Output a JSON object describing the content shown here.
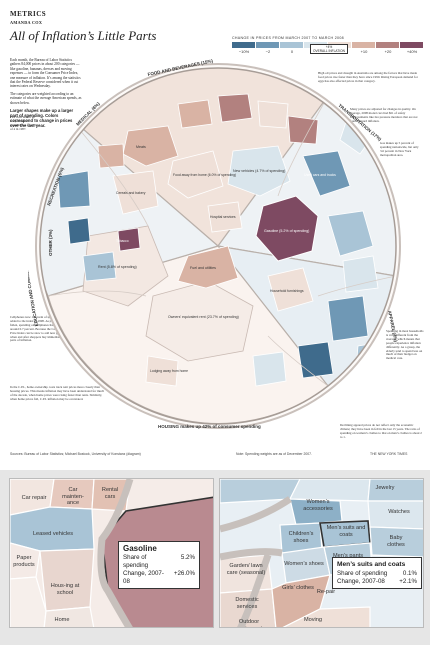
{
  "header": {
    "kicker": "METRICS",
    "byline": "AMANDA COX",
    "title": "All of Inflation’s Little Parts"
  },
  "intro": {
    "p1": "Each month, the Bureau of Labor Statistics gathers 84,000 prices in about 200 categories — like gasoline, bananas, dresses and moving expenses — to form the Consumer Price Index, one measure of inflation. It’s among the statistics that the Federal Reserve considered when it cut interest rates on Wednesday.",
    "p2": "The categories are weighted according to an estimate of what the average American spends, as shown below.",
    "lead": "Larger shapes make up a larger part of spending. Colors correspond to change in prices over the last year."
  },
  "legend": {
    "title": "CHANGE IN PRICES FROM MARCH 2007 TO MARCH 2008",
    "ticks": [
      "−10%",
      "−2",
      "0",
      "+2",
      "+4",
      "+10",
      "+20",
      "+40%"
    ],
    "cpi_label": "+4%",
    "cpi_sub": "OVERALL INFLATION",
    "colors": [
      "#3f6b8c",
      "#6f98b5",
      "#a9c4d6",
      "#d9e5ec",
      "#efe0d8",
      "#d9b3a4",
      "#b2817f",
      "#7e4a62"
    ]
  },
  "notes": {
    "energy": "High oil prices and drought in Australia are among the factors that have made food prices rise faster than they have since 1990. Rising European demand for eggs has also affected prices in that category.",
    "prices": "Many prices are adjusted for changes in quality. On average, 2008 model cars had $61 of safety improvements like tire pressure monitors that are not found toward inflation.",
    "gas": "Gas makes up 5 percent of spending nationwide, but only 3.6 percent in New York metropolitan area.",
    "fish": "Fast food makes up 2.4 percent of spending for a family of 4 in 1987.",
    "housing": "Spending in most households is very different from the average, which means that people experience inflation differently. As a group, the elderly tend to spend less on much of their budget on medical care.",
    "tv": "Cellphones now 1 percent of spending — were added to the index in 1998. As prices have fallen, spending on cellphones has stayed at around 0.7 percent. Because the Consumer Price Index can be slow to add new goods, when and after shoppers buy immediately parts of inflation.",
    "housing2": "In the C.P.I., home ownership costs track rent prices more closely than housing prices. This means inflation may have been understated for much of the decade, when home prices were rising faster than rents. Similarly, when home prices fall, C.P.I. inflation may be overstated.",
    "clothing": "Declining apparel prices do not reflect only the economic climate; they have been in fell in the last 15 years. The ratio of spending on women’s clothes to that on men’s clothes is about 2 to 1."
  },
  "wheel_labels": {
    "food": "FOOD AND BEVERAGES (15%)",
    "transport": "TRANSPORTATION (17%)",
    "medical": "MEDICAL (6%)",
    "recreation": "RECREATION (6%)",
    "education": "EDUCATION AND COMMUNICATION (6%)",
    "housing": "HOUSING makes up 42% of consumer spending",
    "apparel": "APPAREL (4%)",
    "misc": "OTHER (3%)"
  },
  "wheel_cells": {
    "gasoline": "Gasoline (5.2% of spending)",
    "rent": "Rent (5.8% of spending)",
    "owners": "Owners’ equivalent rent (23.7% of spending)",
    "new_cars": "New vehicles (4.7% of spending)",
    "fuel": "Fuel and utilities",
    "meats": "Meats",
    "dining": "Food away from home (6.0% of spending)",
    "lodging": "Lodging away from home",
    "hotels": "Household furnishings",
    "cereals": "Cereals and bakery",
    "used_cars": "Used cars and trucks",
    "hospital": "Hospital services",
    "tobacco": "Tobacco"
  },
  "footer": {
    "source": "Sources: Bureau of Labor Statistics; Michael Bostock, University of Konstanz (diagram)",
    "note": "Note: Spending weights are as of December 2007.",
    "credit": "THE NEW YORK TIMES"
  },
  "zoom_left": {
    "cells": [
      "Car repair",
      "Car mainten-ance",
      "Rental cars",
      "Leased vehicles",
      "Paper products",
      "Hous-ing at school",
      "Home"
    ],
    "tooltip": {
      "name": "Gasoline",
      "share_label": "Share of spending",
      "share_value": "5.2%",
      "change_label": "Change, 2007-08",
      "change_value": "+26.0%"
    }
  },
  "zoom_right": {
    "cells": [
      "Jewelry",
      "Women’s accessories",
      "Watches",
      "Children’s shoes",
      "Men’s suits and coats",
      "Baby clothes",
      "Women’s shoes",
      "Men’s pants",
      "Garden/ lawn care (seasonal)",
      "Girls’ clothes",
      "Domestic services",
      "Re-pair",
      "Outdoor equipment",
      "Moving"
    ],
    "tooltip": {
      "name": "Men’s suits and coats",
      "share_label": "Share of spending",
      "share_value": "0.1%",
      "change_label": "Change, 2007-08",
      "change_value": "+2.1%"
    }
  }
}
